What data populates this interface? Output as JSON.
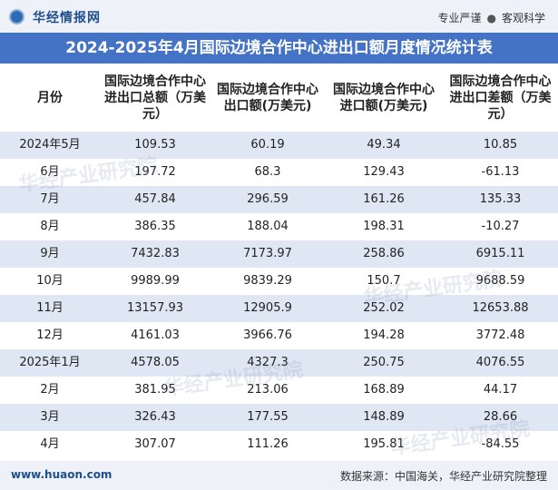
{
  "header": {
    "logo_text": "华经情报网",
    "slogan_left": "专业严谨",
    "slogan_sep": "●",
    "slogan_right": "客观科学"
  },
  "title": "2024-2025年4月国际边境合作中心进出口额月度情况统计表",
  "columns": [
    "月份",
    "国际边境合作中心进出口总额（万美元）",
    "国际边境合作中心出口额(万美元)",
    "国际边境合作中心进口额(万美元)",
    "国际边境合作中心进出口差额（万美元）"
  ],
  "rows": [
    {
      "month": "2024年5月",
      "total": "109.53",
      "export": "60.19",
      "import": "49.34",
      "balance": "10.85"
    },
    {
      "month": "6月",
      "total": "197.72",
      "export": "68.3",
      "import": "129.43",
      "balance": "-61.13"
    },
    {
      "month": "7月",
      "total": "457.84",
      "export": "296.59",
      "import": "161.26",
      "balance": "135.33"
    },
    {
      "month": "8月",
      "total": "386.35",
      "export": "188.04",
      "import": "198.31",
      "balance": "-10.27"
    },
    {
      "month": "9月",
      "total": "7432.83",
      "export": "7173.97",
      "import": "258.86",
      "balance": "6915.11"
    },
    {
      "month": "10月",
      "total": "9989.99",
      "export": "9839.29",
      "import": "150.7",
      "balance": "9688.59"
    },
    {
      "month": "11月",
      "total": "13157.93",
      "export": "12905.9",
      "import": "252.02",
      "balance": "12653.88"
    },
    {
      "month": "12月",
      "total": "4161.03",
      "export": "3966.76",
      "import": "194.28",
      "balance": "3772.48"
    },
    {
      "month": "2025年1月",
      "total": "4578.05",
      "export": "4327.3",
      "import": "250.75",
      "balance": "4076.55"
    },
    {
      "month": "2月",
      "total": "381.95",
      "export": "213.06",
      "import": "168.89",
      "balance": "44.17"
    },
    {
      "month": "3月",
      "total": "326.43",
      "export": "177.55",
      "import": "148.89",
      "balance": "28.66"
    },
    {
      "month": "4月",
      "total": "307.07",
      "export": "111.26",
      "import": "195.81",
      "balance": "-84.55"
    }
  ],
  "footer": {
    "site": "www.huaon.com",
    "source": "数据来源：中国海关，华经产业研究院整理"
  },
  "watermark_text": "华经产业研究院",
  "colors": {
    "title_bg": "#4472c4",
    "stripe": "#dfe7f4",
    "brand": "#1f4e8c"
  }
}
